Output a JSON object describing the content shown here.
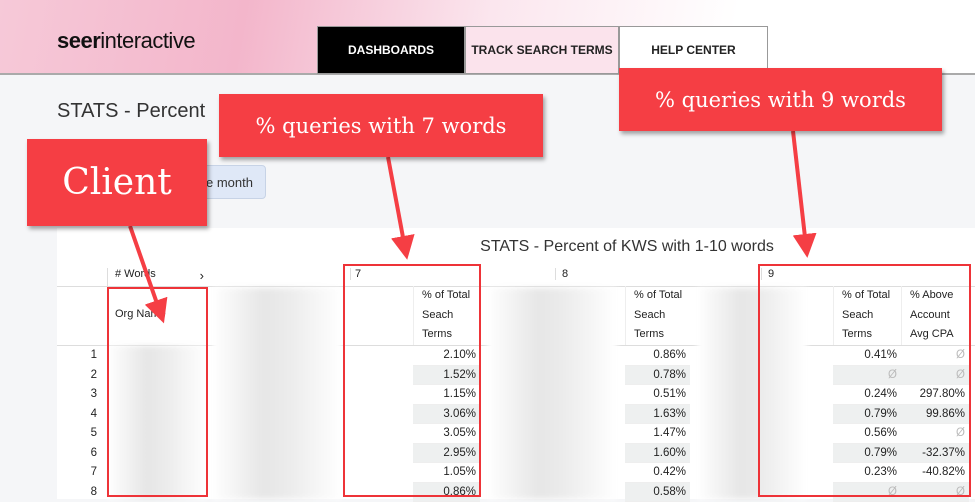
{
  "header": {
    "logo_bold": "seer",
    "logo_rest": "interactive",
    "tabs": [
      {
        "label": "DASHBOARDS",
        "active": true
      },
      {
        "label": "TRACK SEARCH TERMS"
      },
      {
        "label": "HELP CENTER"
      }
    ]
  },
  "page": {
    "title": "STATS - Percent",
    "button_label": "e month"
  },
  "table": {
    "title": "STATS - Percent of KWS with 1-10 words",
    "dimension_label": "# Words",
    "groups": [
      "7",
      "8",
      "9"
    ],
    "row_header": "Org Name",
    "metric_header": [
      "% of Total",
      "Seach",
      "Terms"
    ],
    "extra_header": [
      "% Above",
      "Account",
      "Avg CPA"
    ],
    "null_symbol": "Ø",
    "rows": [
      {
        "n": "1",
        "w7": "2.10%",
        "w8": "0.86%",
        "w9": "0.41%",
        "cpa": null
      },
      {
        "n": "2",
        "w7": "1.52%",
        "w8": "0.78%",
        "w9": null,
        "cpa": null
      },
      {
        "n": "3",
        "w7": "1.15%",
        "w8": "0.51%",
        "w9": "0.24%",
        "cpa": "297.80%"
      },
      {
        "n": "4",
        "w7": "3.06%",
        "w8": "1.63%",
        "w9": "0.79%",
        "cpa": "99.86%"
      },
      {
        "n": "5",
        "w7": "3.05%",
        "w8": "1.47%",
        "w9": "0.56%",
        "cpa": null
      },
      {
        "n": "6",
        "w7": "2.95%",
        "w8": "1.60%",
        "w9": "0.79%",
        "cpa": "-32.37%"
      },
      {
        "n": "7",
        "w7": "1.05%",
        "w8": "0.42%",
        "w9": "0.23%",
        "cpa": "-40.82%"
      },
      {
        "n": "8",
        "w7": "0.86%",
        "w8": "0.58%",
        "w9": null,
        "cpa": null
      }
    ]
  },
  "annotations": {
    "client": "Client",
    "seven": "% queries with 7 words",
    "nine": "% queries with 9 words",
    "color": "#f53e44"
  }
}
